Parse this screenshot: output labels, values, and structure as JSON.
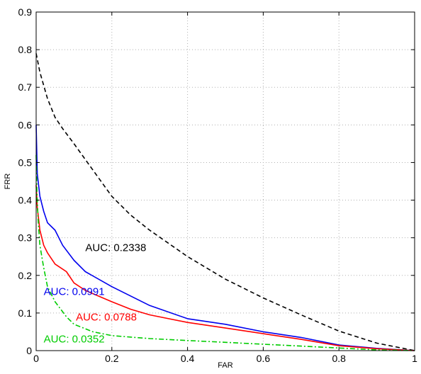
{
  "chart_data": {
    "type": "line",
    "xlabel": "FAR",
    "ylabel": "FRR",
    "xlim": [
      0,
      1
    ],
    "ylim": [
      0,
      0.9
    ],
    "grid": true,
    "x_ticks": [
      "0",
      "0.2",
      "0.4",
      "0.6",
      "0.8",
      "1"
    ],
    "x_tick_values": [
      0,
      0.2,
      0.4,
      0.6,
      0.8,
      1
    ],
    "y_ticks": [
      "0",
      "0.1",
      "0.2",
      "0.3",
      "0.4",
      "0.5",
      "0.6",
      "0.7",
      "0.8",
      "0.9"
    ],
    "y_tick_values": [
      0,
      0.1,
      0.2,
      0.3,
      0.4,
      0.5,
      0.6,
      0.7,
      0.8,
      0.9
    ],
    "series": [
      {
        "color": "#000000",
        "style": "dashed",
        "points": [
          [
            0,
            0.79
          ],
          [
            0.01,
            0.74
          ],
          [
            0.03,
            0.67
          ],
          [
            0.05,
            0.62
          ],
          [
            0.07,
            0.59
          ],
          [
            0.1,
            0.55
          ],
          [
            0.15,
            0.48
          ],
          [
            0.2,
            0.41
          ],
          [
            0.25,
            0.36
          ],
          [
            0.3,
            0.32
          ],
          [
            0.4,
            0.25
          ],
          [
            0.5,
            0.19
          ],
          [
            0.6,
            0.14
          ],
          [
            0.7,
            0.095
          ],
          [
            0.8,
            0.052
          ],
          [
            0.9,
            0.02
          ],
          [
            1,
            0
          ]
        ]
      },
      {
        "color": "#0000ee",
        "style": "solid",
        "points": [
          [
            0,
            0.6
          ],
          [
            0.003,
            0.47
          ],
          [
            0.01,
            0.41
          ],
          [
            0.02,
            0.37
          ],
          [
            0.03,
            0.34
          ],
          [
            0.05,
            0.32
          ],
          [
            0.07,
            0.28
          ],
          [
            0.1,
            0.24
          ],
          [
            0.13,
            0.21
          ],
          [
            0.2,
            0.17
          ],
          [
            0.3,
            0.12
          ],
          [
            0.4,
            0.085
          ],
          [
            0.5,
            0.07
          ],
          [
            0.6,
            0.05
          ],
          [
            0.7,
            0.035
          ],
          [
            0.8,
            0.015
          ],
          [
            0.9,
            0.006
          ],
          [
            1,
            0
          ]
        ]
      },
      {
        "color": "#ff0000",
        "style": "solid",
        "points": [
          [
            0,
            0.44
          ],
          [
            0.003,
            0.38
          ],
          [
            0.01,
            0.32
          ],
          [
            0.02,
            0.28
          ],
          [
            0.03,
            0.26
          ],
          [
            0.05,
            0.23
          ],
          [
            0.08,
            0.21
          ],
          [
            0.1,
            0.18
          ],
          [
            0.13,
            0.16
          ],
          [
            0.2,
            0.13
          ],
          [
            0.25,
            0.11
          ],
          [
            0.3,
            0.095
          ],
          [
            0.4,
            0.075
          ],
          [
            0.5,
            0.06
          ],
          [
            0.6,
            0.045
          ],
          [
            0.7,
            0.03
          ],
          [
            0.8,
            0.013
          ],
          [
            0.9,
            0.005
          ],
          [
            1,
            0
          ]
        ]
      },
      {
        "color": "#00cc00",
        "style": "dashdot",
        "points": [
          [
            0,
            0.52
          ],
          [
            0.002,
            0.42
          ],
          [
            0.005,
            0.35
          ],
          [
            0.01,
            0.28
          ],
          [
            0.02,
            0.22
          ],
          [
            0.03,
            0.17
          ],
          [
            0.05,
            0.13
          ],
          [
            0.08,
            0.09
          ],
          [
            0.1,
            0.07
          ],
          [
            0.15,
            0.05
          ],
          [
            0.2,
            0.04
          ],
          [
            0.3,
            0.032
          ],
          [
            0.4,
            0.027
          ],
          [
            0.5,
            0.022
          ],
          [
            0.6,
            0.017
          ],
          [
            0.7,
            0.012
          ],
          [
            0.8,
            0.007
          ],
          [
            0.9,
            0.002
          ],
          [
            1,
            0
          ]
        ]
      }
    ],
    "annotations": [
      {
        "text": "AUC: 0.2338",
        "x": 0.13,
        "y": 0.265,
        "color": "#000000"
      },
      {
        "text": "AUC: 0.0991",
        "x": 0.02,
        "y": 0.148,
        "color": "#0000ee"
      },
      {
        "text": "AUC: 0.0788",
        "x": 0.105,
        "y": 0.08,
        "color": "#ff0000"
      },
      {
        "text": "AUC: 0.0352",
        "x": 0.02,
        "y": 0.022,
        "color": "#00cc00"
      }
    ]
  }
}
